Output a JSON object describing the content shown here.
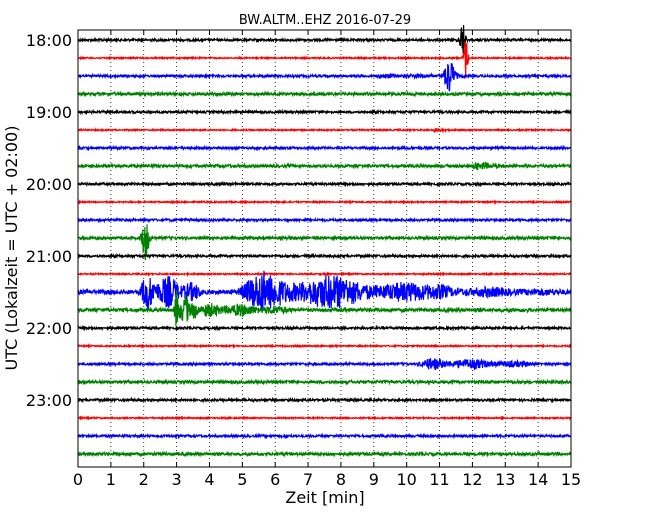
{
  "chart_data": {
    "type": "line",
    "title": "BW.ALTM..EHZ 2016-07-29",
    "xlabel": "Zeit  [min]",
    "ylabel": "UTC (Lokalzeit = UTC + 02:00)",
    "xlim": [
      0,
      15
    ],
    "x_ticks": [
      0,
      1,
      2,
      3,
      4,
      5,
      6,
      7,
      8,
      9,
      10,
      11,
      12,
      13,
      14,
      15
    ],
    "y_tick_labels": [
      "18:00",
      "19:00",
      "20:00",
      "21:00",
      "22:00",
      "23:00"
    ],
    "grid": "vertical dotted",
    "trace_colors": [
      "#000000",
      "#ff0000",
      "#0000ff",
      "#008000"
    ],
    "traces": [
      {
        "time": "18:00",
        "amp": 0.08,
        "events": [
          {
            "t": 11.7,
            "amp": 1.3,
            "dur": 0.08,
            "type": "spike"
          }
        ]
      },
      {
        "time": "18:15",
        "amp": 0.05,
        "events": [
          {
            "t": 11.8,
            "amp": 1.6,
            "dur": 0.06,
            "type": "spike"
          }
        ]
      },
      {
        "time": "18:30",
        "amp": 0.08,
        "events": [
          {
            "t": 11.3,
            "amp": 1.2,
            "dur": 0.15,
            "type": "spike"
          },
          {
            "t": 9.0,
            "amp": 0.12,
            "dur": 3.0,
            "type": "burst"
          }
        ]
      },
      {
        "time": "18:45",
        "amp": 0.1,
        "events": []
      },
      {
        "time": "19:00",
        "amp": 0.08,
        "events": []
      },
      {
        "time": "19:15",
        "amp": 0.05,
        "events": [
          {
            "t": 10.8,
            "amp": 0.15,
            "dur": 0.6,
            "type": "burst"
          }
        ]
      },
      {
        "time": "19:30",
        "amp": 0.08,
        "events": []
      },
      {
        "time": "19:45",
        "amp": 0.1,
        "events": [
          {
            "t": 12.0,
            "amp": 0.3,
            "dur": 0.8,
            "type": "burst"
          }
        ]
      },
      {
        "time": "20:00",
        "amp": 0.08,
        "events": []
      },
      {
        "time": "20:15",
        "amp": 0.05,
        "events": []
      },
      {
        "time": "20:30",
        "amp": 0.08,
        "events": []
      },
      {
        "time": "20:45",
        "amp": 0.1,
        "events": [
          {
            "t": 2.05,
            "amp": 1.6,
            "dur": 0.1,
            "type": "spike"
          }
        ]
      },
      {
        "time": "21:00",
        "amp": 0.08,
        "events": []
      },
      {
        "time": "21:15",
        "amp": 0.05,
        "events": []
      },
      {
        "time": "21:30",
        "amp": 0.15,
        "events": [
          {
            "t": 1.85,
            "amp": 1.5,
            "dur": 2.0,
            "type": "burst"
          },
          {
            "t": 4.8,
            "amp": 1.6,
            "dur": 6.5,
            "type": "burst"
          },
          {
            "t": 10.5,
            "amp": 0.35,
            "dur": 4.5,
            "type": "burst"
          }
        ]
      },
      {
        "time": "21:45",
        "amp": 0.12,
        "events": [
          {
            "t": 2.9,
            "amp": 1.5,
            "dur": 0.8,
            "type": "burst"
          },
          {
            "t": 3.6,
            "amp": 0.5,
            "dur": 3.0,
            "type": "burst"
          }
        ]
      },
      {
        "time": "22:00",
        "amp": 0.08,
        "events": []
      },
      {
        "time": "22:15",
        "amp": 0.05,
        "events": []
      },
      {
        "time": "22:30",
        "amp": 0.08,
        "events": [
          {
            "t": 10.3,
            "amp": 0.45,
            "dur": 3.7,
            "type": "burst"
          }
        ]
      },
      {
        "time": "22:45",
        "amp": 0.1,
        "events": []
      },
      {
        "time": "23:00",
        "amp": 0.08,
        "events": []
      },
      {
        "time": "23:15",
        "amp": 0.05,
        "events": []
      },
      {
        "time": "23:30",
        "amp": 0.08,
        "events": []
      },
      {
        "time": "23:45",
        "amp": 0.1,
        "events": []
      }
    ]
  }
}
